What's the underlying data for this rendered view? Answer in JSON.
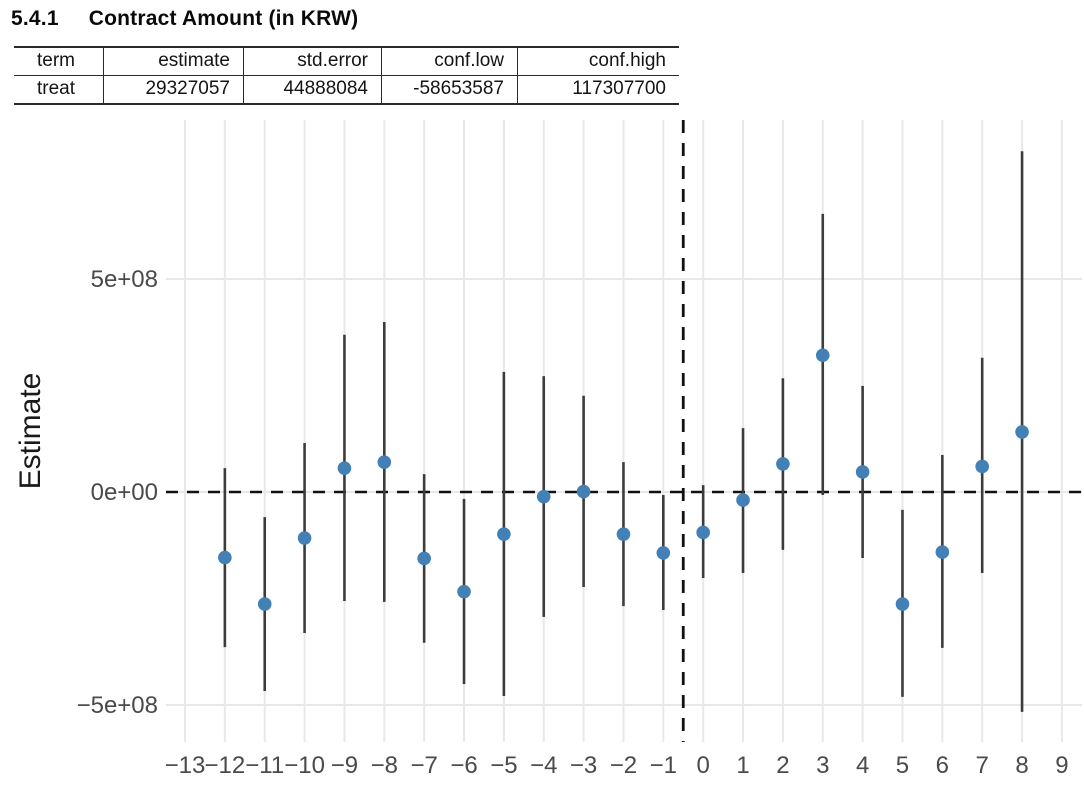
{
  "page": {
    "heading_number": "5.4.1",
    "heading_title": "Contract Amount (in KRW)"
  },
  "table": {
    "columns": [
      "term",
      "estimate",
      "std.error",
      "conf.low",
      "conf.high"
    ],
    "rows": [
      [
        "treat",
        "29327057",
        "44888084",
        "-58653587",
        "117307700"
      ]
    ]
  },
  "chart_data": {
    "type": "scatter",
    "subtype": "pointrange-event-study",
    "title": "",
    "xlabel": "",
    "ylabel": "Estimate",
    "grid": true,
    "legend": "none",
    "x_ticks": [
      -13,
      -12,
      -11,
      -10,
      -9,
      -8,
      -7,
      -6,
      -5,
      -4,
      -3,
      -2,
      -1,
      0,
      1,
      2,
      3,
      4,
      5,
      6,
      7,
      8,
      9
    ],
    "y_ticks": [
      {
        "value": -500000000,
        "label": "−5e+08"
      },
      {
        "value": 0,
        "label": "0e+00"
      },
      {
        "value": 500000000,
        "label": "5e+08"
      }
    ],
    "xlim": [
      -13.5,
      9.5
    ],
    "ylim": [
      -587000000,
      873000000
    ],
    "reference_lines": {
      "hline_y": 0,
      "vline_x": -0.5,
      "style": "dashed",
      "color": "#111111"
    },
    "colors": {
      "point": "#4380B5",
      "errorbar": "#3c3c3c",
      "grid": "#e8e8e8"
    },
    "series": [
      {
        "name": "estimate",
        "points": [
          {
            "x": -12,
            "estimate": -154000000,
            "conf_low": -364000000,
            "conf_high": 56000000
          },
          {
            "x": -11,
            "estimate": -263000000,
            "conf_low": -467000000,
            "conf_high": -59000000
          },
          {
            "x": -10,
            "estimate": -108000000,
            "conf_low": -331000000,
            "conf_high": 115000000
          },
          {
            "x": -9,
            "estimate": 56000000,
            "conf_low": -256000000,
            "conf_high": 369000000
          },
          {
            "x": -8,
            "estimate": 70000000,
            "conf_low": -258000000,
            "conf_high": 399000000
          },
          {
            "x": -7,
            "estimate": -156000000,
            "conf_low": -354000000,
            "conf_high": 42000000
          },
          {
            "x": -6,
            "estimate": -234000000,
            "conf_low": -451000000,
            "conf_high": -16000000
          },
          {
            "x": -5,
            "estimate": -99000000,
            "conf_low": -479000000,
            "conf_high": 282000000
          },
          {
            "x": -4,
            "estimate": -11000000,
            "conf_low": -293000000,
            "conf_high": 272000000
          },
          {
            "x": -3,
            "estimate": 1000000,
            "conf_low": -223000000,
            "conf_high": 226000000
          },
          {
            "x": -2,
            "estimate": -99000000,
            "conf_low": -268000000,
            "conf_high": 70000000
          },
          {
            "x": -1,
            "estimate": -143000000,
            "conf_low": -277000000,
            "conf_high": -7000000
          },
          {
            "x": 0,
            "estimate": -95000000,
            "conf_low": -202000000,
            "conf_high": 16000000
          },
          {
            "x": 1,
            "estimate": -19000000,
            "conf_low": -190000000,
            "conf_high": 150000000
          },
          {
            "x": 2,
            "estimate": 66000000,
            "conf_low": -136000000,
            "conf_high": 267000000
          },
          {
            "x": 3,
            "estimate": 321000000,
            "conf_low": -7000000,
            "conf_high": 653000000
          },
          {
            "x": 4,
            "estimate": 47000000,
            "conf_low": -155000000,
            "conf_high": 249000000
          },
          {
            "x": 5,
            "estimate": -263000000,
            "conf_low": -481000000,
            "conf_high": -42000000
          },
          {
            "x": 6,
            "estimate": -141000000,
            "conf_low": -366000000,
            "conf_high": 87000000
          },
          {
            "x": 7,
            "estimate": 60000000,
            "conf_low": -190000000,
            "conf_high": 315000000
          },
          {
            "x": 8,
            "estimate": 141000000,
            "conf_low": -516000000,
            "conf_high": 800000000
          }
        ]
      }
    ]
  }
}
